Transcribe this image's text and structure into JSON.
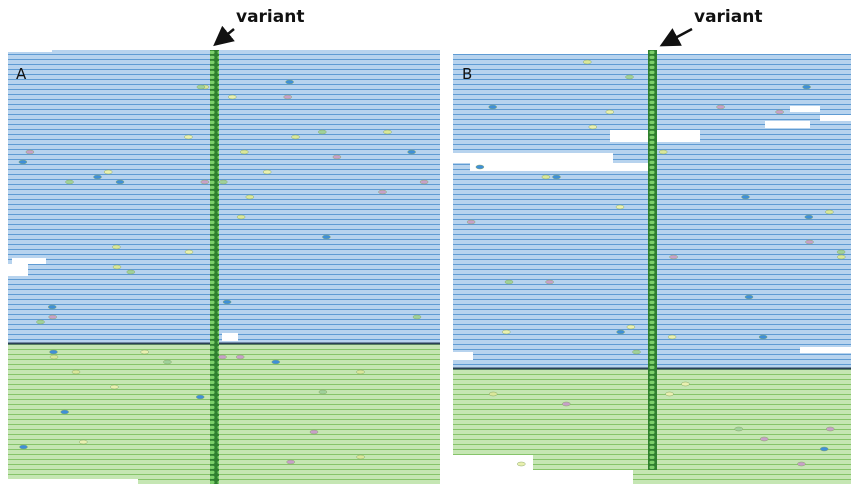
{
  "panels": [
    {
      "label": "A",
      "annotation": "variant"
    },
    {
      "label": "B",
      "annotation": "variant"
    }
  ]
}
